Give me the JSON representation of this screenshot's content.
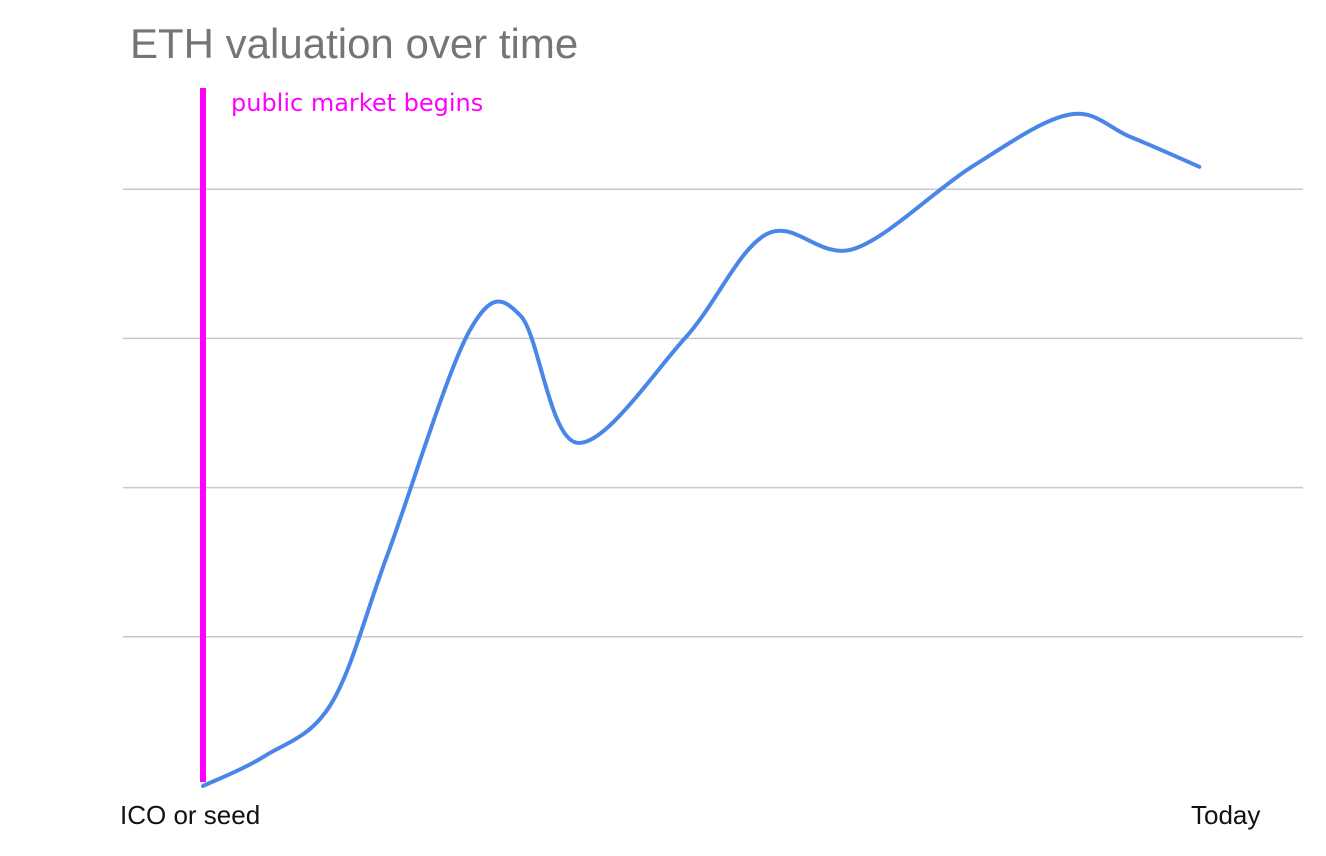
{
  "chart_data": {
    "type": "line",
    "title": "ETH valuation over time",
    "xlabel": "",
    "ylabel": "",
    "x_tick_labels": [
      "ICO or seed",
      "Today"
    ],
    "xlim": [
      0,
      1
    ],
    "ylim": [
      0,
      100
    ],
    "grid": true,
    "gridlines_y": [
      20,
      40,
      60,
      80
    ],
    "legend": "none",
    "series": [
      {
        "color": "#4a86e8",
        "x": [
          0.0,
          0.06,
          0.125,
          0.18,
          0.26,
          0.31,
          0.365,
          0.47,
          0.55,
          0.635,
          0.75,
          0.845,
          0.905,
          0.972
        ],
        "y": [
          0,
          4,
          11,
          31,
          61,
          63,
          46,
          60,
          74,
          72,
          83,
          90,
          87,
          83
        ]
      }
    ],
    "annotations": [
      {
        "type": "vertical_line",
        "x": 0.0,
        "label": "public market begins",
        "color": "#ff00ff"
      }
    ]
  }
}
